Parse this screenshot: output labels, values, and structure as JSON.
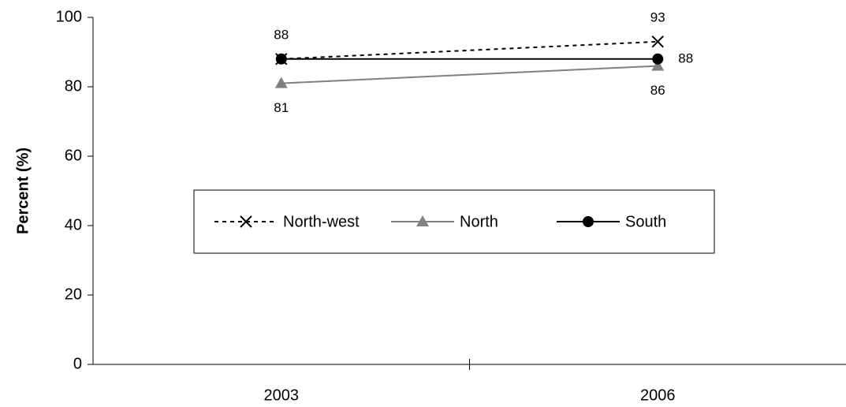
{
  "chart_data": {
    "type": "line",
    "y_label": "Percent (%)",
    "categories": [
      "2003",
      "2006"
    ],
    "series": [
      {
        "name": "North-west",
        "color": "#000000",
        "dashed": true,
        "marker": "x",
        "label_position": "above",
        "values": [
          88,
          93
        ],
        "value_labels": [
          "88",
          "93"
        ]
      },
      {
        "name": "North",
        "color": "#808080",
        "dashed": false,
        "marker": "triangle",
        "label_position": "below",
        "values": [
          81,
          86
        ],
        "value_labels": [
          "81",
          "86"
        ]
      },
      {
        "name": "South",
        "color": "#000000",
        "dashed": false,
        "marker": "circle",
        "label_position": "right",
        "values": [
          88,
          88
        ],
        "value_labels": [
          null,
          "88"
        ]
      }
    ],
    "ylim": [
      0,
      100
    ],
    "yticks": [
      0,
      20,
      40,
      60,
      80,
      100
    ],
    "grid": false,
    "legend": "center"
  }
}
